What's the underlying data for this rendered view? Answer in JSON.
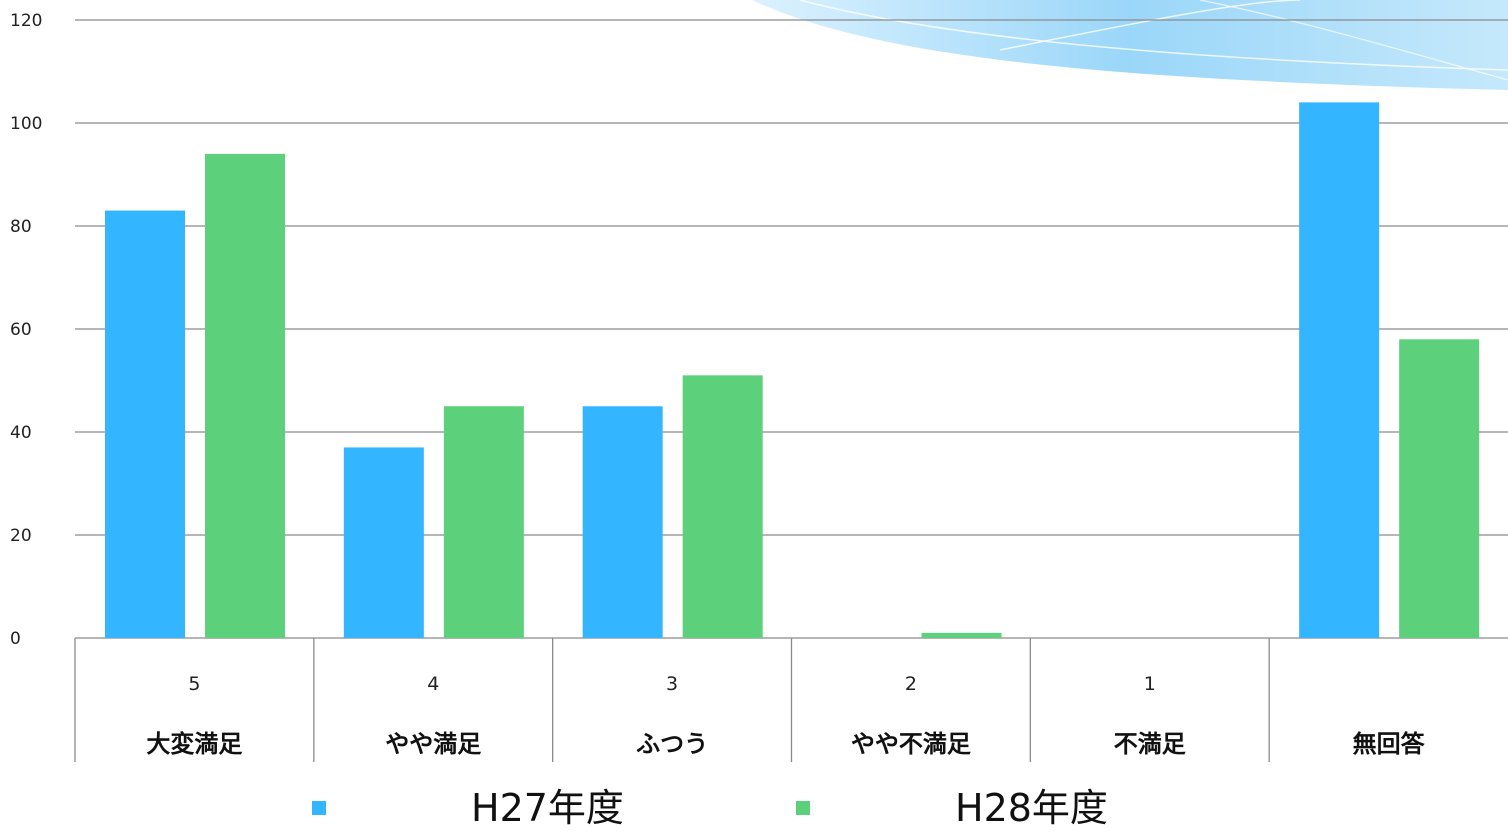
{
  "chart_data": {
    "type": "bar",
    "categories": [
      {
        "num": "5",
        "label": "大変満足"
      },
      {
        "num": "4",
        "label": "やや満足"
      },
      {
        "num": "3",
        "label": "ふつう"
      },
      {
        "num": "2",
        "label": "やや不満足"
      },
      {
        "num": "1",
        "label": "不満足"
      },
      {
        "num": "",
        "label": "無回答"
      }
    ],
    "series": [
      {
        "name": "H27年度",
        "color": "#33b5ff",
        "values": [
          83,
          37,
          45,
          0,
          0,
          104
        ]
      },
      {
        "name": "H28年度",
        "color": "#5cd07a",
        "values": [
          94,
          45,
          51,
          1,
          0,
          58
        ]
      }
    ],
    "ylim": [
      0,
      120
    ],
    "yticks": [
      "0",
      "20",
      "40",
      "60",
      "80",
      "100",
      "120"
    ],
    "grid": true,
    "legend_position": "bottom"
  }
}
